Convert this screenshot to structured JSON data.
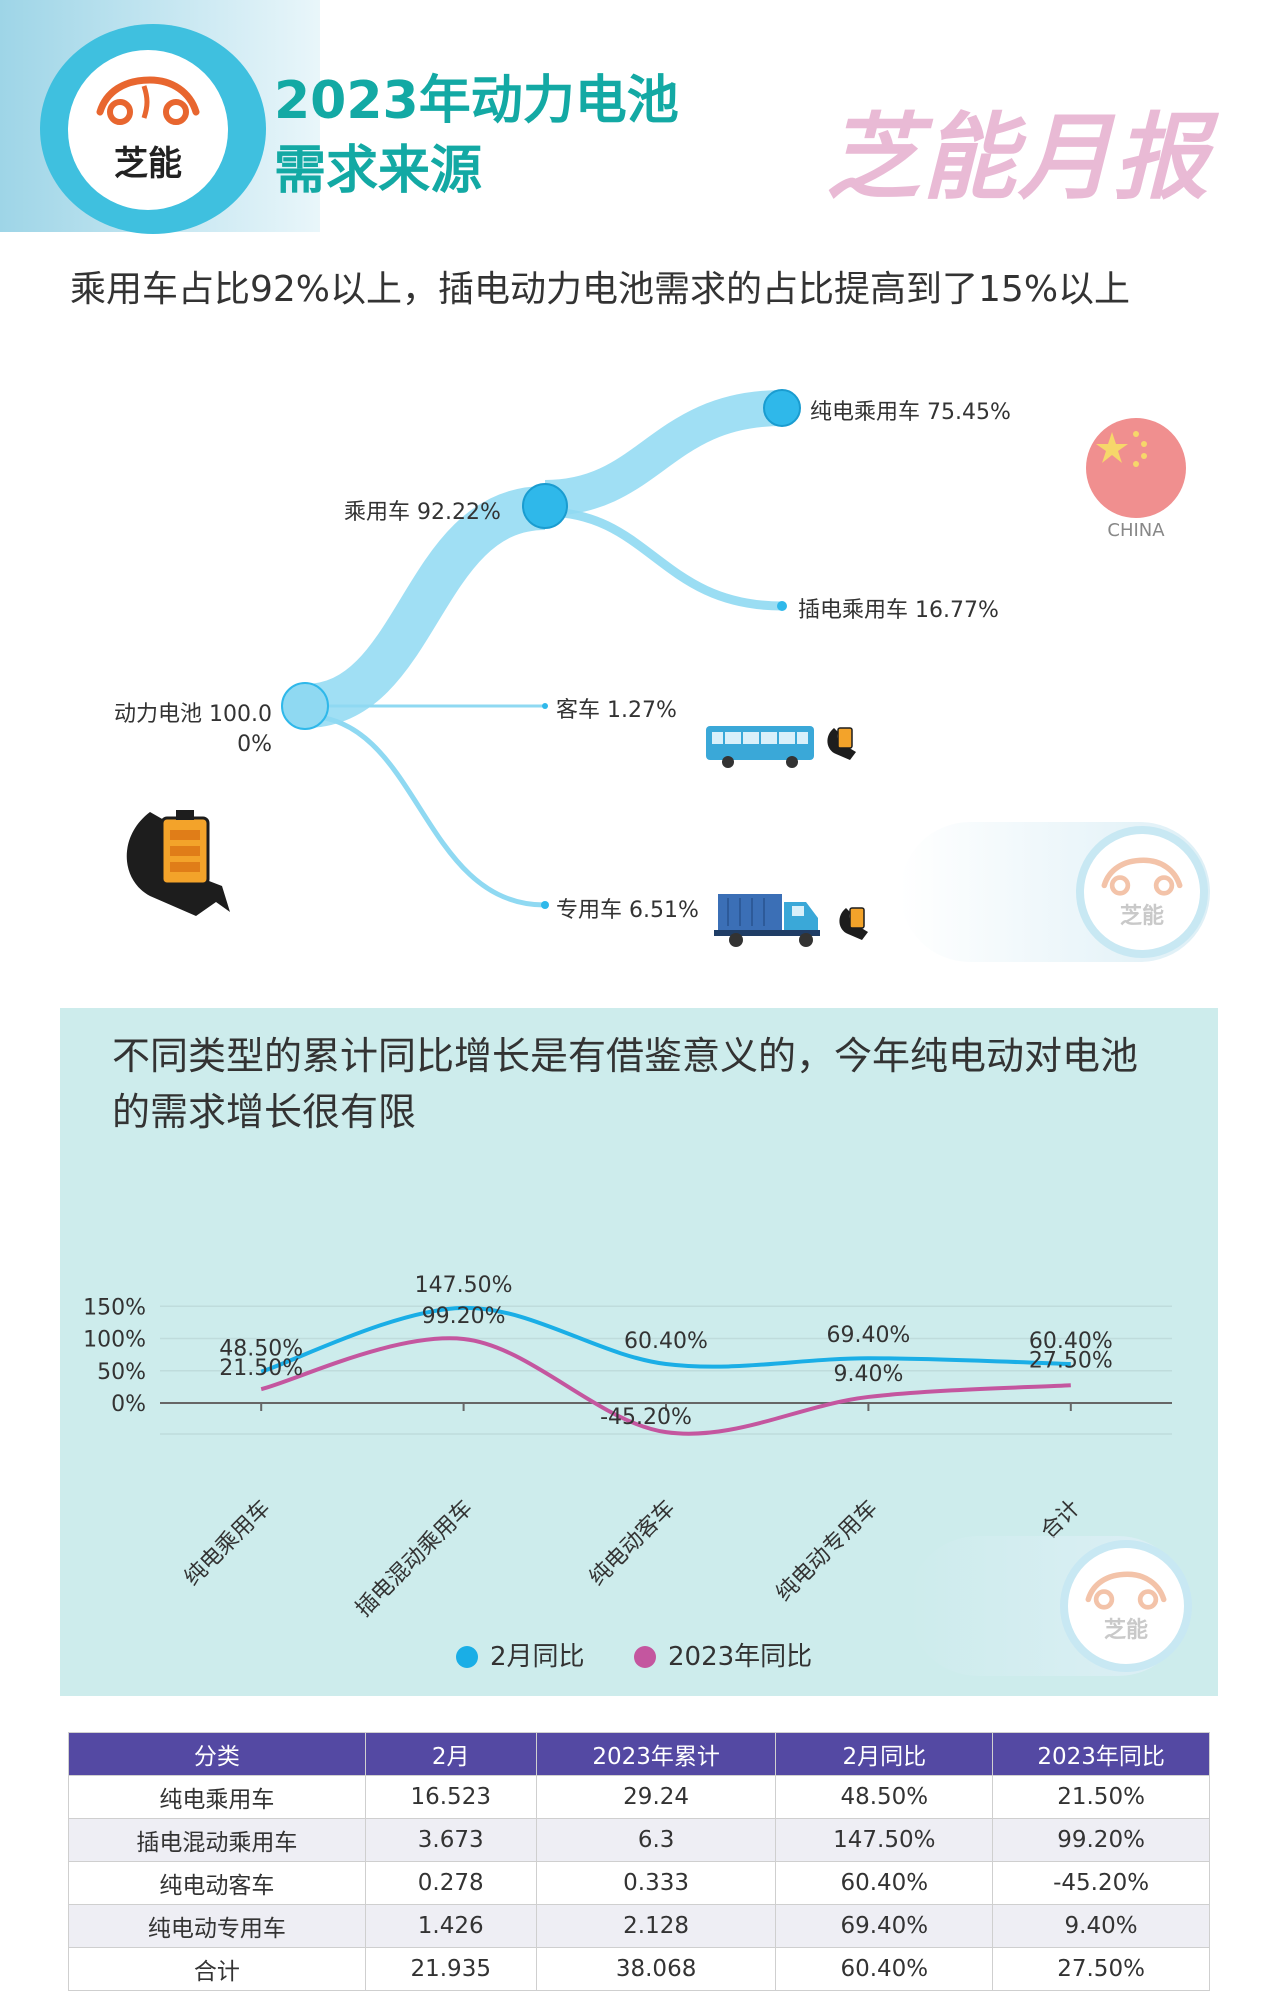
{
  "header": {
    "logo_text": "芝能",
    "title_line1": "2023年动力电池",
    "title_line2": "需求来源",
    "brand": "芝能月报"
  },
  "subtitle": "乘用车占比92%以上，插电动力电池需求的占比提高到了15%以上",
  "sankey": {
    "nodes": [
      {
        "id": "battery",
        "label": "动力电池 100.00%",
        "share": 100.0
      },
      {
        "id": "passenger",
        "label": "乘用车 92.22%",
        "share": 92.22
      },
      {
        "id": "bev_passenger",
        "label": "纯电乘用车 75.45%",
        "share": 75.45
      },
      {
        "id": "phev_passenger",
        "label": "插电乘用车 16.77%",
        "share": 16.77
      },
      {
        "id": "bus",
        "label": "客车 1.27%",
        "share": 1.27
      },
      {
        "id": "special",
        "label": "专用车 6.51%",
        "share": 6.51
      }
    ],
    "china_label": "CHINA"
  },
  "watermark_text": "芝能",
  "colors": {
    "bev_line": "#1aaee6",
    "total_line": "#c4569f",
    "flow": "#8fd9f2",
    "node": "#2fb8ea",
    "title": "#13a9a4",
    "table_header": "#5449a3",
    "panel": "#cdecec"
  },
  "chart": {
    "title": "不同类型的累计同比增长是有借鉴意义的，今年纯电动对电池的需求增长很有限"
  },
  "chart_data": {
    "type": "line",
    "categories": [
      "纯电乘用车",
      "插电混动乘用车",
      "纯电动客车",
      "纯电动专用车",
      "合计"
    ],
    "series": [
      {
        "name": "2月同比",
        "values": [
          48.5,
          147.5,
          60.4,
          69.4,
          60.4
        ],
        "labels": [
          "48.50%",
          "147.50%",
          "60.40%",
          "69.40%",
          "60.40%"
        ]
      },
      {
        "name": "2023年同比",
        "values": [
          21.5,
          99.2,
          -45.2,
          9.4,
          27.5
        ],
        "labels": [
          "21.50%",
          "99.20%",
          "-45.20%",
          "9.40%",
          "27.50%"
        ]
      }
    ],
    "yticks": [
      "150%",
      "100%",
      "50%",
      "0%"
    ],
    "ytick_values": [
      150,
      100,
      50,
      0
    ],
    "ylim": [
      -45,
      150
    ],
    "grid": true,
    "legend_position": "bottom"
  },
  "table": {
    "headers": [
      "分类",
      "2月",
      "2023年累计",
      "2月同比",
      "2023年同比"
    ],
    "rows": [
      [
        "纯电乘用车",
        "16.523",
        "29.24",
        "48.50%",
        "21.50%"
      ],
      [
        "插电混动乘用车",
        "3.673",
        "6.3",
        "147.50%",
        "99.20%"
      ],
      [
        "纯电动客车",
        "0.278",
        "0.333",
        "60.40%",
        "-45.20%"
      ],
      [
        "纯电动专用车",
        "1.426",
        "2.128",
        "69.40%",
        "9.40%"
      ],
      [
        "合计",
        "21.935",
        "38.068",
        "60.40%",
        "27.50%"
      ]
    ]
  }
}
